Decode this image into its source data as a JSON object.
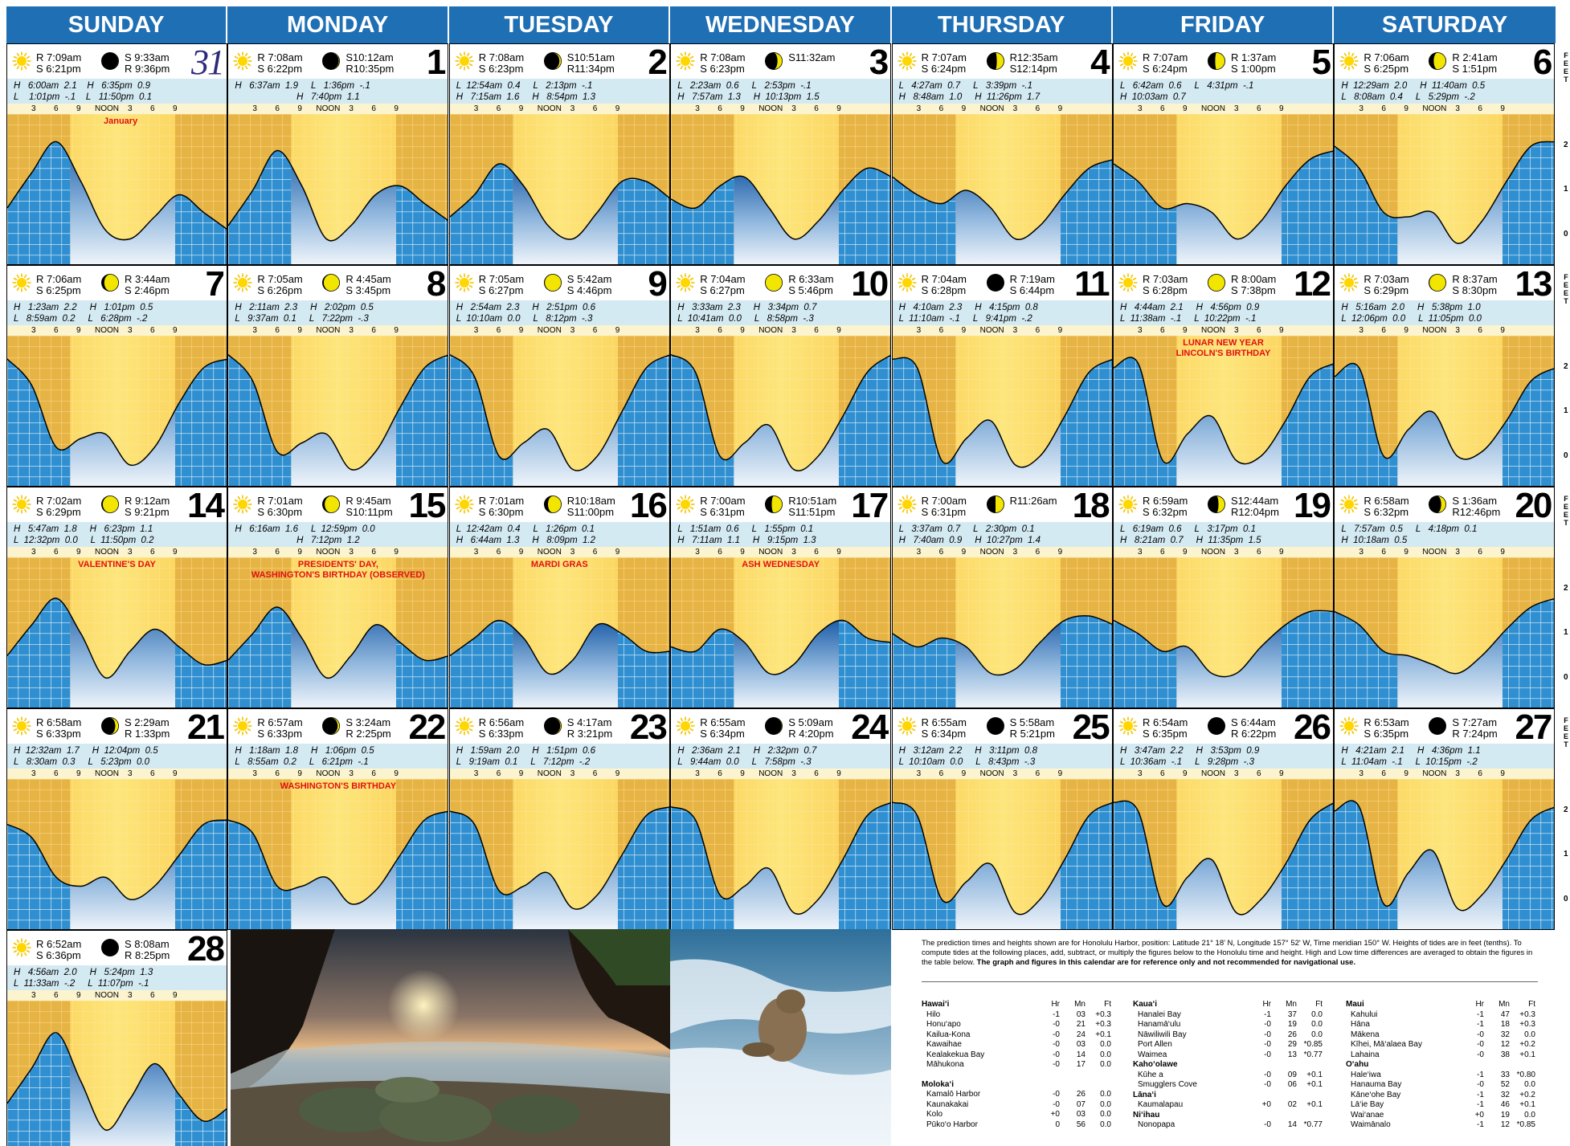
{
  "weekdays": [
    "SUNDAY",
    "MONDAY",
    "TUESDAY",
    "WEDNESDAY",
    "THURSDAY",
    "FRIDAY",
    "SATURDAY"
  ],
  "tick_labels": [
    "3",
    "6",
    "9",
    "NOON",
    "3",
    "6",
    "9"
  ],
  "feet_label": "F E E T",
  "feet_ticks": [
    "2",
    "1",
    "0"
  ],
  "colors": {
    "header": "#1f6fb4",
    "day_band": "#fbd357",
    "night_band": "#2f8fd0",
    "tide_bar": "#d4eaf3",
    "event_text": "#e01010"
  },
  "month_label": "January",
  "days": [
    {
      "date": "31",
      "italic": true,
      "sun_r": "R 7:09am",
      "sun_s": "S 6:21pm",
      "moon_a": "S 9:33am",
      "moon_b": "R 9:36pm",
      "phase": 0.95,
      "t1": "H   6:00am  2.1    H   6:35pm  0.9",
      "t2": "L    1:01pm  -.1    L   11:50pm  0.1",
      "event": "January",
      "heights": [
        0.6,
        1.4,
        2.1,
        1.2,
        0.1,
        -0.1,
        0.4,
        0.9,
        0.5,
        0.1
      ]
    },
    {
      "date": "1",
      "sun_r": "R 7:08am",
      "sun_s": "S 6:22pm",
      "moon_a": "S10:12am",
      "moon_b": "R10:35pm",
      "phase": 0.9,
      "t1": "H   6:37am  1.9     L   1:36pm  -.1",
      "t2": "                        H   7:40pm  1.1",
      "event": "",
      "heights": [
        0.2,
        1.0,
        1.9,
        1.1,
        -0.1,
        0.2,
        0.9,
        1.1,
        0.7,
        0.3
      ]
    },
    {
      "date": "2",
      "sun_r": "R 7:08am",
      "sun_s": "S 6:23pm",
      "moon_a": "S10:51am",
      "moon_b": "R11:34pm",
      "phase": 0.8,
      "t1": "L  12:54am  0.4     L   2:13pm  -.1",
      "t2": "H   7:15am  1.6     H   8:54pm  1.3",
      "event": "",
      "heights": [
        0.4,
        0.9,
        1.6,
        1.1,
        0.2,
        -0.1,
        0.5,
        1.2,
        1.2,
        0.8
      ]
    },
    {
      "date": "3",
      "sun_r": "R 7:08am",
      "sun_s": "S 6:23pm",
      "moon_a": "S11:32am",
      "moon_b": "",
      "phase": 0.65,
      "t1": "L   2:23am  0.6     L   2:53pm  -.1",
      "t2": "H   7:57am  1.3     H  10:13pm  1.5",
      "event": "",
      "heights": [
        0.8,
        0.6,
        1.1,
        1.3,
        0.6,
        -0.1,
        0.3,
        1.0,
        1.5,
        1.3
      ]
    },
    {
      "date": "4",
      "sun_r": "R 7:07am",
      "sun_s": "S 6:24pm",
      "moon_a": "R12:35am",
      "moon_b": "S12:14pm",
      "phase": 0.55,
      "t1": "L   4:27am  0.7     L   3:39pm  -.1",
      "t2": "H   8:48am  1.0     H  11:26pm  1.7",
      "event": "",
      "heights": [
        1.3,
        0.9,
        0.7,
        1.0,
        0.6,
        -0.1,
        0.2,
        0.9,
        1.5,
        1.7
      ]
    },
    {
      "date": "5",
      "sun_r": "R 7:07am",
      "sun_s": "S 6:24pm",
      "moon_a": "R 1:37am",
      "moon_b": "S 1:00pm",
      "phase": 0.45,
      "t1": "L   6:42am  0.6     L   4:31pm  -.1",
      "t2": "H  10:03am  0.7",
      "event": "",
      "heights": [
        1.6,
        1.2,
        0.6,
        0.7,
        0.5,
        -0.1,
        0.3,
        1.1,
        1.7,
        1.9
      ]
    },
    {
      "date": "6",
      "sun_r": "R 7:06am",
      "sun_s": "S 6:25pm",
      "moon_a": "R 2:41am",
      "moon_b": "S 1:51pm",
      "phase": 0.35,
      "t1": "H  12:29am  2.0     H  11:40am  0.5",
      "t2": "L   8:08am  0.4     L   5:29pm  -.2",
      "event": "",
      "heights": [
        2.0,
        1.5,
        0.5,
        0.4,
        0.5,
        -0.2,
        0.3,
        1.2,
        2.0,
        2.1
      ]
    },
    {
      "date": "7",
      "sun_r": "R 7:06am",
      "sun_s": "S 6:25pm",
      "moon_a": "R 3:44am",
      "moon_b": "S 2:46pm",
      "phase": 0.25,
      "t1": "H   1:23am  2.2     H   1:01pm  0.5",
      "t2": "L   8:59am  0.2     L   6:28pm  -.2",
      "event": "",
      "heights": [
        2.2,
        1.6,
        0.2,
        0.4,
        0.5,
        -0.2,
        0.2,
        1.2,
        2.0,
        2.2
      ]
    },
    {
      "date": "8",
      "sun_r": "R 7:05am",
      "sun_s": "S 6:26pm",
      "moon_a": "R 4:45am",
      "moon_b": "S 3:45pm",
      "phase": 0.15,
      "t1": "H   2:11am  2.3     H   2:02pm  0.5",
      "t2": "L   9:37am  0.1     L   7:22pm  -.3",
      "event": "",
      "heights": [
        2.3,
        1.7,
        0.1,
        0.3,
        0.5,
        -0.3,
        0.1,
        1.1,
        2.0,
        2.3
      ]
    },
    {
      "date": "9",
      "sun_r": "R 7:05am",
      "sun_s": "S 6:27pm",
      "moon_a": "S 5:42am",
      "moon_b": "S 4:46pm",
      "phase": 0.08,
      "t1": "H   2:54am  2.3     H   2:51pm  0.6",
      "t2": "L  10:10am  0.0     L   8:12pm  -.3",
      "event": "",
      "heights": [
        2.3,
        1.8,
        0.0,
        0.3,
        0.6,
        -0.3,
        0.0,
        1.0,
        2.0,
        2.3
      ]
    },
    {
      "date": "10",
      "sun_r": "R 7:04am",
      "sun_s": "S 6:27pm",
      "moon_a": "R 6:33am",
      "moon_b": "S 5:46pm",
      "phase": 0.02,
      "t1": "H   3:33am  2.3     H   3:34pm  0.7",
      "t2": "L  10:41am  0.0     L   8:58pm  -.3",
      "event": "",
      "heights": [
        2.3,
        1.9,
        0.0,
        0.3,
        0.7,
        -0.3,
        0.0,
        0.9,
        1.9,
        2.3
      ]
    },
    {
      "date": "11",
      "sun_r": "R 7:04am",
      "sun_s": "S 6:28pm",
      "moon_a": "R 7:19am",
      "moon_b": "S 6:44pm",
      "phase": 0.0,
      "t1": "H   4:10am  2.3     H   4:15pm  0.8",
      "t2": "L  11:10am  -.1     L   9:41pm  -.2",
      "event": "",
      "heights": [
        2.2,
        2.0,
        -0.1,
        0.4,
        0.8,
        -0.2,
        0.0,
        0.9,
        1.9,
        2.2
      ]
    },
    {
      "date": "12",
      "sun_r": "R 7:03am",
      "sun_s": "S 6:28pm",
      "moon_a": "R 8:00am",
      "moon_b": "S 7:38pm",
      "phase": 0.03,
      "t1": "H   4:44am  2.1     H   4:56pm  0.9",
      "t2": "L  11:38am  -.1     L  10:22pm  -.1",
      "event": "LUNAR NEW YEAR|LINCOLN'S BIRTHDAY",
      "heights": [
        2.0,
        2.1,
        -0.1,
        0.5,
        0.9,
        -0.1,
        0.0,
        0.8,
        1.8,
        2.1
      ]
    },
    {
      "date": "13",
      "sun_r": "R 7:03am",
      "sun_s": "S 6:29pm",
      "moon_a": "R 8:37am",
      "moon_b": "S 8:30pm",
      "phase": 0.08,
      "t1": "H   5:16am  2.0     H   5:38pm  1.0",
      "t2": "L  12:06pm  0.0     L  11:05pm  0.0",
      "event": "",
      "heights": [
        1.8,
        2.0,
        0.0,
        0.6,
        1.0,
        0.0,
        0.1,
        0.8,
        1.7,
        2.0
      ]
    },
    {
      "date": "14",
      "sun_r": "R 7:02am",
      "sun_s": "S 6:29pm",
      "moon_a": "R 9:12am",
      "moon_b": "S 9:21pm",
      "phase": 0.15,
      "t1": "H   5:47am  1.8     H   6:23pm  1.1",
      "t2": "L  12:32pm  0.0     L  11:50pm  0.2",
      "event": "VALENTINE'S DAY",
      "heights": [
        0.5,
        1.2,
        1.8,
        1.0,
        0.0,
        0.6,
        1.1,
        0.7,
        0.3,
        0.4
      ]
    },
    {
      "date": "15",
      "sun_r": "R 7:01am",
      "sun_s": "S 6:30pm",
      "moon_a": "R 9:45am",
      "moon_b": "S10:11pm",
      "phase": 0.22,
      "t1": "H   6:16am  1.6     L  12:59pm  0.0",
      "t2": "                        H   7:12pm  1.2",
      "event": "PRESIDENTS' DAY,|WASHINGTON'S BIRTHDAY (OBSERVED)",
      "heights": [
        0.4,
        1.0,
        1.6,
        0.9,
        0.0,
        0.5,
        1.2,
        0.8,
        0.4,
        0.5
      ]
    },
    {
      "date": "16",
      "sun_r": "R 7:01am",
      "sun_s": "S 6:30pm",
      "moon_a": "R10:18am",
      "moon_b": "S11:00pm",
      "phase": 0.3,
      "t1": "L  12:42am  0.4     L   1:26pm  0.1",
      "t2": "H   6:44am  1.3     H   8:09pm  1.2",
      "event": "MARDI GRAS",
      "heights": [
        0.5,
        0.9,
        1.3,
        0.9,
        0.1,
        0.4,
        1.2,
        1.0,
        0.6,
        0.6
      ]
    },
    {
      "date": "17",
      "sun_r": "R 7:00am",
      "sun_s": "S 6:31pm",
      "moon_a": "R10:51am",
      "moon_b": "S11:51pm",
      "phase": 0.42,
      "t1": "L   1:51am  0.6     L   1:55pm  0.1",
      "t2": "H   7:11am  1.1     H   9:15pm  1.3",
      "event": "ASH WEDNESDAY",
      "heights": [
        0.7,
        0.6,
        1.1,
        0.8,
        0.1,
        0.3,
        1.0,
        1.3,
        0.9,
        0.8
      ]
    },
    {
      "date": "18",
      "sun_r": "R 7:00am",
      "sun_s": "S 6:31pm",
      "moon_a": "R11:26am",
      "moon_b": "",
      "phase": 0.5,
      "t1": "L   3:37am  0.7     L   2:30pm  0.1",
      "t2": "H   7:40am  0.9     H  10:27pm  1.4",
      "event": "",
      "heights": [
        1.0,
        0.7,
        0.9,
        0.7,
        0.1,
        0.2,
        0.8,
        1.3,
        1.4,
        1.2
      ]
    },
    {
      "date": "19",
      "sun_r": "R 6:59am",
      "sun_s": "S 6:32pm",
      "moon_a": "S12:44am",
      "moon_b": "R12:04pm",
      "phase": 0.58,
      "t1": "L   6:19am  0.6     L   3:17pm  0.1",
      "t2": "H   8:21am  0.7     H  11:35pm  1.5",
      "event": "",
      "heights": [
        1.3,
        1.0,
        0.6,
        0.7,
        0.1,
        0.1,
        0.7,
        1.2,
        1.5,
        1.5
      ]
    },
    {
      "date": "20",
      "sun_r": "R 6:58am",
      "sun_s": "S 6:32pm",
      "moon_a": "S 1:36am",
      "moon_b": "R12:46pm",
      "phase": 0.65,
      "t1": "L   7:57am  0.5     L   4:18pm  0.1",
      "t2": "H  10:18am  0.5",
      "event": "",
      "heights": [
        1.5,
        1.2,
        0.6,
        0.5,
        0.3,
        0.1,
        0.5,
        1.1,
        1.6,
        1.8
      ]
    },
    {
      "date": "21",
      "sun_r": "R 6:58am",
      "sun_s": "S 6:33pm",
      "moon_a": "S 2:29am",
      "moon_b": "R 1:33pm",
      "phase": 0.72,
      "t1": "H  12:32am  1.7     H  12:04pm  0.5",
      "t2": "L   8:30am  0.3     L   5:23pm  0.0",
      "event": "",
      "heights": [
        1.7,
        1.4,
        0.5,
        0.3,
        0.5,
        0.0,
        0.3,
        1.0,
        1.7,
        1.8
      ]
    },
    {
      "date": "22",
      "sun_r": "R 6:57am",
      "sun_s": "S 6:33pm",
      "moon_a": "S 3:24am",
      "moon_b": "R 2:25pm",
      "phase": 0.8,
      "t1": "H   1:18am  1.8     H   1:06pm  0.5",
      "t2": "L   8:55am  0.2     L   6:21pm  -.1",
      "event": "WASHINGTON'S BIRTHDAY",
      "heights": [
        1.8,
        1.5,
        0.3,
        0.3,
        0.5,
        -0.1,
        0.2,
        1.0,
        1.8,
        2.0
      ]
    },
    {
      "date": "23",
      "sun_r": "R 6:56am",
      "sun_s": "S 6:33pm",
      "moon_a": "S 4:17am",
      "moon_b": "R 3:21pm",
      "phase": 0.87,
      "t1": "H   1:59am  2.0     H   1:51pm  0.6",
      "t2": "L   9:19am  0.1     L   7:12pm  -.2",
      "event": "",
      "heights": [
        2.0,
        1.7,
        0.2,
        0.3,
        0.6,
        -0.2,
        0.1,
        1.0,
        1.9,
        2.1
      ]
    },
    {
      "date": "24",
      "sun_r": "R 6:55am",
      "sun_s": "S 6:34pm",
      "moon_a": "S 5:09am",
      "moon_b": "R 4:20pm",
      "phase": 0.93,
      "t1": "H   2:36am  2.1     H   2:32pm  0.7",
      "t2": "L   9:44am  0.0     L   7:58pm  -.3",
      "event": "",
      "heights": [
        2.1,
        1.8,
        0.1,
        0.3,
        0.7,
        -0.3,
        0.0,
        0.9,
        1.9,
        2.2
      ]
    },
    {
      "date": "25",
      "sun_r": "R 6:55am",
      "sun_s": "S 6:34pm",
      "moon_a": "S 5:58am",
      "moon_b": "R 5:21pm",
      "phase": 0.97,
      "t1": "H   3:12am  2.2     H   3:11pm  0.8",
      "t2": "L  10:10am  0.0     L   8:43pm  -.3",
      "event": "",
      "heights": [
        2.2,
        1.9,
        0.0,
        0.4,
        0.8,
        -0.3,
        0.0,
        0.9,
        1.9,
        2.2
      ]
    },
    {
      "date": "26",
      "sun_r": "R 6:54am",
      "sun_s": "S 6:35pm",
      "moon_a": "S 6:44am",
      "moon_b": "R 6:22pm",
      "phase": 1.0,
      "t1": "H   3:47am  2.2     H   3:53pm  0.9",
      "t2": "L  10:36am  -.1     L   9:28pm  -.3",
      "event": "",
      "heights": [
        2.2,
        2.0,
        -0.1,
        0.5,
        0.9,
        -0.3,
        0.0,
        0.8,
        1.8,
        2.2
      ]
    },
    {
      "date": "27",
      "sun_r": "R 6:53am",
      "sun_s": "S 6:35pm",
      "moon_a": "S 7:27am",
      "moon_b": "R 7:24pm",
      "phase": 0.98,
      "t1": "H   4:21am  2.1     H   4:36pm  1.1",
      "t2": "L  11:04am  -.1     L  10:15pm  -.2",
      "event": "",
      "heights": [
        2.0,
        2.1,
        -0.1,
        0.6,
        1.1,
        -0.2,
        0.1,
        0.9,
        1.8,
        2.1
      ]
    },
    {
      "date": "28",
      "sun_r": "R 6:52am",
      "sun_s": "S 6:36pm",
      "moon_a": "S 8:08am",
      "moon_b": "R 8:25pm",
      "phase": 0.95,
      "t1": "H   4:56am  2.0     H   5:24pm  1.3",
      "t2": "L  11:33am  -.2     L  11:07pm  -.1",
      "event": "",
      "heights": [
        0.4,
        1.2,
        2.0,
        0.9,
        -0.2,
        0.5,
        1.3,
        0.6,
        0.0,
        0.3
      ]
    }
  ],
  "notes": {
    "text": "The prediction times and heights shown are for Honolulu Harbor, position: Latitude 21° 18' N, Longitude 157° 52' W, Time meridian 150° W. Heights of tides are in feet (tenths). To compute tides at the following places, add, subtract, or multiply the figures below to the Honolulu time and height.  High and Low time differences are averaged to obtain the figures in the table below.",
    "bold": "The graph and figures in this calendar are for reference only and not recommended for navigational use."
  },
  "tables": [
    {
      "groups": [
        {
          "name": "Hawai‘i",
          "rows": [
            [
              "Hilo",
              "-1",
              "03",
              "+0.3"
            ],
            [
              "Honu‘apo",
              "-0",
              "21",
              "+0.3"
            ],
            [
              "Kailua-Kona",
              "-0",
              "24",
              "+0.1"
            ],
            [
              "Kawaihae",
              "-0",
              "03",
              "0.0"
            ],
            [
              "Kealakekua Bay",
              "-0",
              "14",
              "0.0"
            ],
            [
              "Māhukona",
              "-0",
              "17",
              "0.0"
            ]
          ]
        },
        {
          "name": "Moloka‘i",
          "rows": [
            [
              "Kamalō Harbor",
              "-0",
              "26",
              "0.0"
            ],
            [
              "Kaunakakai",
              "-0",
              "07",
              "0.0"
            ],
            [
              "Kolo",
              "+0",
              "03",
              "0.0"
            ],
            [
              "Pūko‘o Harbor",
              "0",
              "56",
              "0.0"
            ]
          ]
        }
      ]
    },
    {
      "groups": [
        {
          "name": "Kaua‘i",
          "rows": [
            [
              "Hanalei Bay",
              "-1",
              "37",
              "0.0"
            ],
            [
              "Hanamā‘ulu",
              "-0",
              "19",
              "0.0"
            ],
            [
              "Nāwiliwili Bay",
              "-0",
              "26",
              "0.0"
            ],
            [
              "Port Allen",
              "-0",
              "29",
              "*0.85"
            ],
            [
              "Waimea",
              "-0",
              "13",
              "*0.77"
            ]
          ]
        },
        {
          "name": "Kaho‘olawe",
          "rows": [
            [
              "Kūhe a",
              "-0",
              "09",
              "+0.1"
            ],
            [
              "Smugglers Cove",
              "-0",
              "06",
              "+0.1"
            ]
          ]
        },
        {
          "name": "Lāna‘i",
          "rows": [
            [
              "Kaumalapau",
              "+0",
              "02",
              "+0.1"
            ]
          ]
        },
        {
          "name": "Ni‘ihau",
          "rows": [
            [
              "Nonopapa",
              "-0",
              "14",
              "*0.77"
            ]
          ]
        }
      ]
    },
    {
      "groups": [
        {
          "name": "Maui",
          "rows": [
            [
              "Kahului",
              "-1",
              "47",
              "+0.3"
            ],
            [
              "Hāna",
              "-1",
              "18",
              "+0.3"
            ],
            [
              "Mākena",
              "-0",
              "32",
              "0.0"
            ],
            [
              "Kīhei, Mā‘alaea Bay",
              "-0",
              "12",
              "+0.2"
            ],
            [
              "Lahaina",
              "-0",
              "38",
              "+0.1"
            ]
          ]
        },
        {
          "name": "O‘ahu",
          "rows": [
            [
              "Hale‘iwa",
              "-1",
              "33",
              "*0.80"
            ],
            [
              "Hanauma Bay",
              "-0",
              "52",
              "0.0"
            ],
            [
              "Kāne‘ohe Bay",
              "-1",
              "32",
              "+0.2"
            ],
            [
              "Lā‘ie Bay",
              "-1",
              "46",
              "+0.1"
            ],
            [
              "Wai‘anae",
              "+0",
              "19",
              "0.0"
            ],
            [
              "Waimānalo",
              "-1",
              "12",
              "*0.85"
            ]
          ]
        }
      ]
    }
  ],
  "table_headers": [
    "Hr",
    "Mn",
    "Ft"
  ]
}
